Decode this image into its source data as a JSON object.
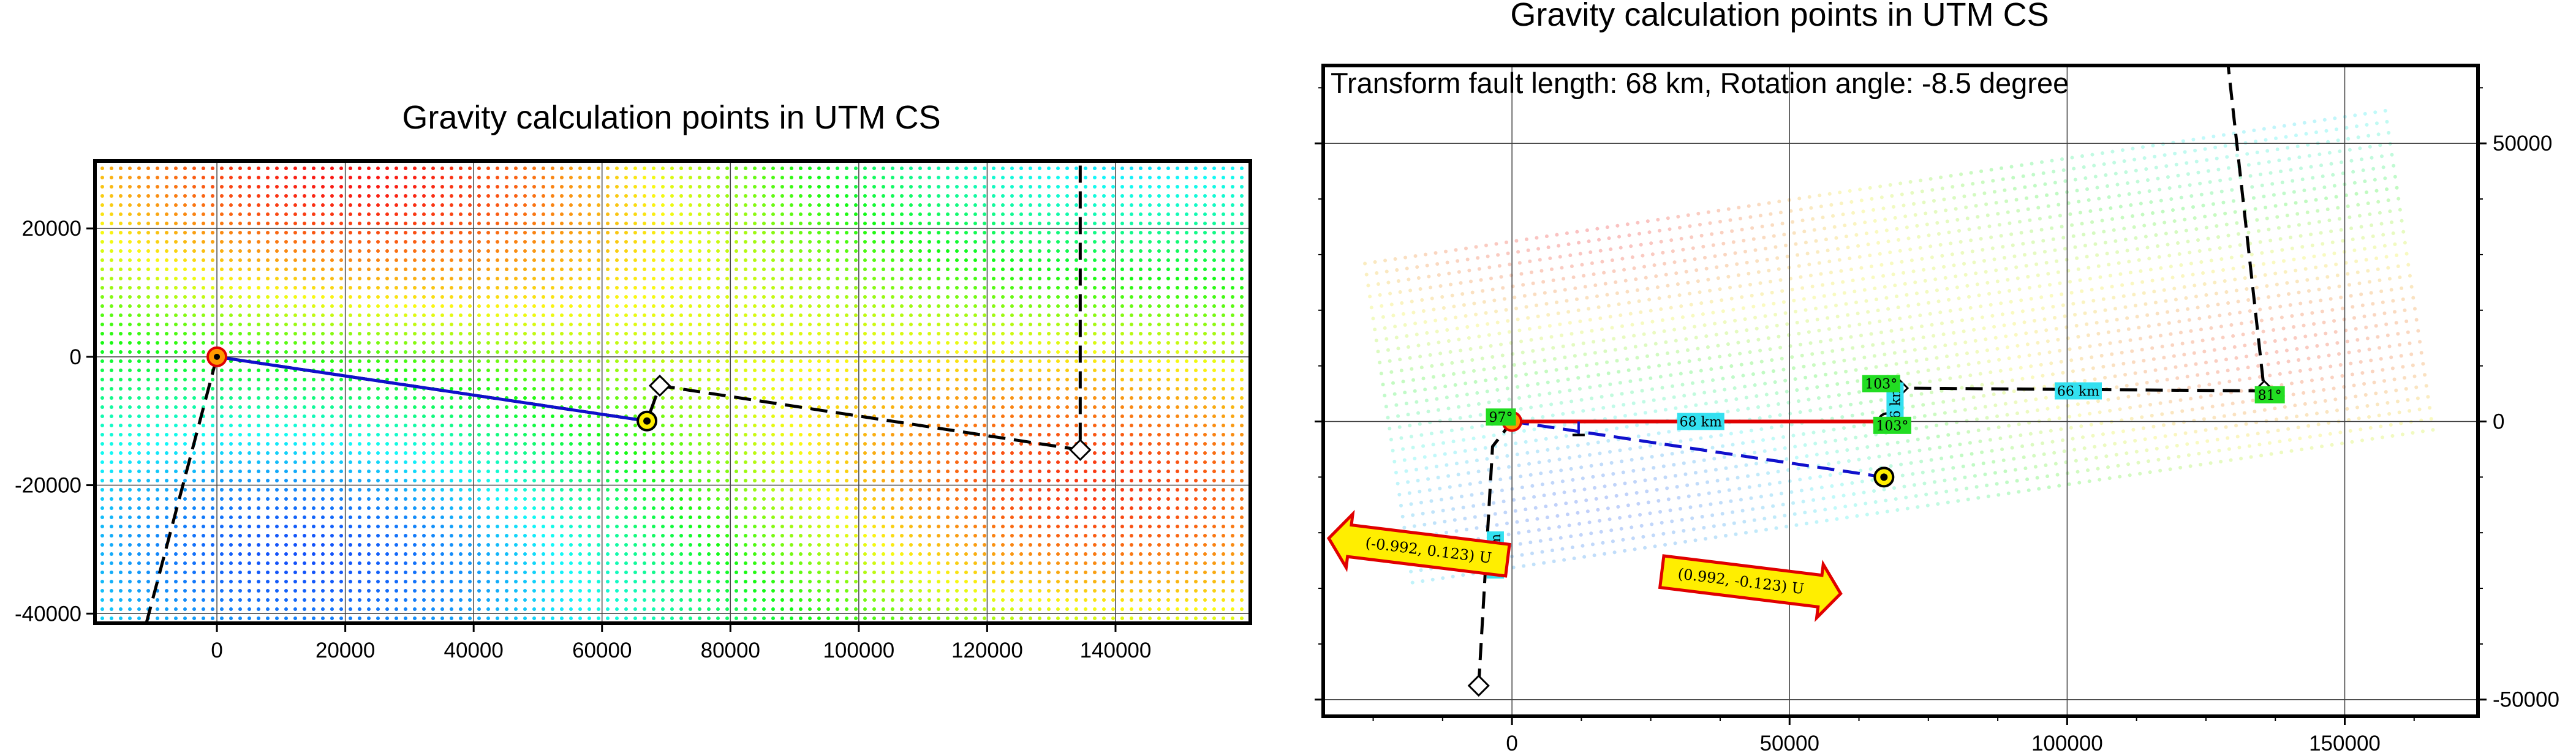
{
  "colors": {
    "left_title": "#0000cc",
    "right_title": "#e00000",
    "fault_blue": "#1010cc",
    "fault_red": "#e00000",
    "label_cyan": "#33e0f0",
    "label_green": "#22dd22",
    "arrow_fill": "#ffee00",
    "arrow_edge": "#e00000"
  },
  "chart_data": [
    {
      "type": "scatter",
      "title": "Gravity calculation points in UTM CS",
      "xlim": [
        -19000,
        161000
      ],
      "ylim": [
        -41500,
        30500
      ],
      "grid": true,
      "xticks": [
        0,
        20000,
        40000,
        60000,
        80000,
        100000,
        120000,
        140000
      ],
      "xtick_labels": [
        "0",
        "20000",
        "40000",
        "60000",
        "80000",
        "100000",
        "120000",
        "140000"
      ],
      "yticks": [
        20000,
        0,
        -20000,
        -40000
      ],
      "ytick_labels": [
        "20000",
        "0",
        "-20000",
        "-40000"
      ],
      "fault_segment": {
        "x": [
          0,
          67000
        ],
        "y": [
          0,
          -10000
        ]
      },
      "dashed_track": {
        "x": [
          -11000,
          0,
          67000,
          69000,
          134500,
          134500
        ],
        "y": [
          -41500,
          0,
          -10000,
          -4500,
          -14500,
          30500
        ]
      },
      "endpoints": [
        {
          "x": 0,
          "y": 0
        },
        {
          "x": 67000,
          "y": -10000
        }
      ],
      "diamonds": [
        {
          "x": 69000,
          "y": -4500
        },
        {
          "x": 134500,
          "y": -14500
        }
      ]
    },
    {
      "type": "scatter",
      "title": "Gravity calculation points in UTM CS",
      "annotation": "Transform fault length: 68 km,  Rotation angle: -8.5 degree",
      "xlim": [
        -34000,
        174000
      ],
      "ylim": [
        -53000,
        64000
      ],
      "grid": true,
      "xticks": [
        0,
        50000,
        100000,
        150000
      ],
      "xtick_labels": [
        "0",
        "50000",
        "100000",
        "150000"
      ],
      "yticks": [
        50000,
        0,
        -50000
      ],
      "ytick_labels": [
        "50000",
        "0",
        "-50000"
      ],
      "fault_segment": {
        "x": [
          0,
          67500
        ],
        "y": [
          0,
          0
        ]
      },
      "rotated_fault": {
        "x": [
          0,
          67000
        ],
        "y": [
          0,
          -10000
        ]
      },
      "dashed_track": {
        "x": [
          -6000,
          -3500,
          0,
          67500,
          69500,
          135500,
          129000
        ],
        "y": [
          -47500,
          -4500,
          0,
          0,
          6000,
          5500,
          64000
        ]
      },
      "diamonds": [
        {
          "x": -6000,
          "y": -47500
        },
        {
          "x": 69500,
          "y": 6000
        },
        {
          "x": 135500,
          "y": 5500
        }
      ],
      "segment_labels": [
        {
          "text": "68 km",
          "x": 34000,
          "y": 0
        },
        {
          "text": "66 km",
          "x": 102000,
          "y": 5500
        },
        {
          "text": "48 km",
          "x": -3000,
          "y": -24000
        },
        {
          "text": "6 km",
          "x": 69000,
          "y": 3500
        }
      ],
      "angle_labels": [
        {
          "text": "97°",
          "x": -2000,
          "y": 800
        },
        {
          "text": "103°",
          "x": 66500,
          "y": 6800
        },
        {
          "text": "103°",
          "x": 68500,
          "y": -700
        },
        {
          "text": "81°",
          "x": 136500,
          "y": 4800
        }
      ],
      "vectors": [
        {
          "text": "(-0.992, 0.123) U",
          "x": -33000,
          "y": -21000,
          "dir": "left"
        },
        {
          "text": "(0.992, -0.123) U",
          "x": 27000,
          "y": -27000,
          "dir": "right"
        }
      ]
    }
  ]
}
